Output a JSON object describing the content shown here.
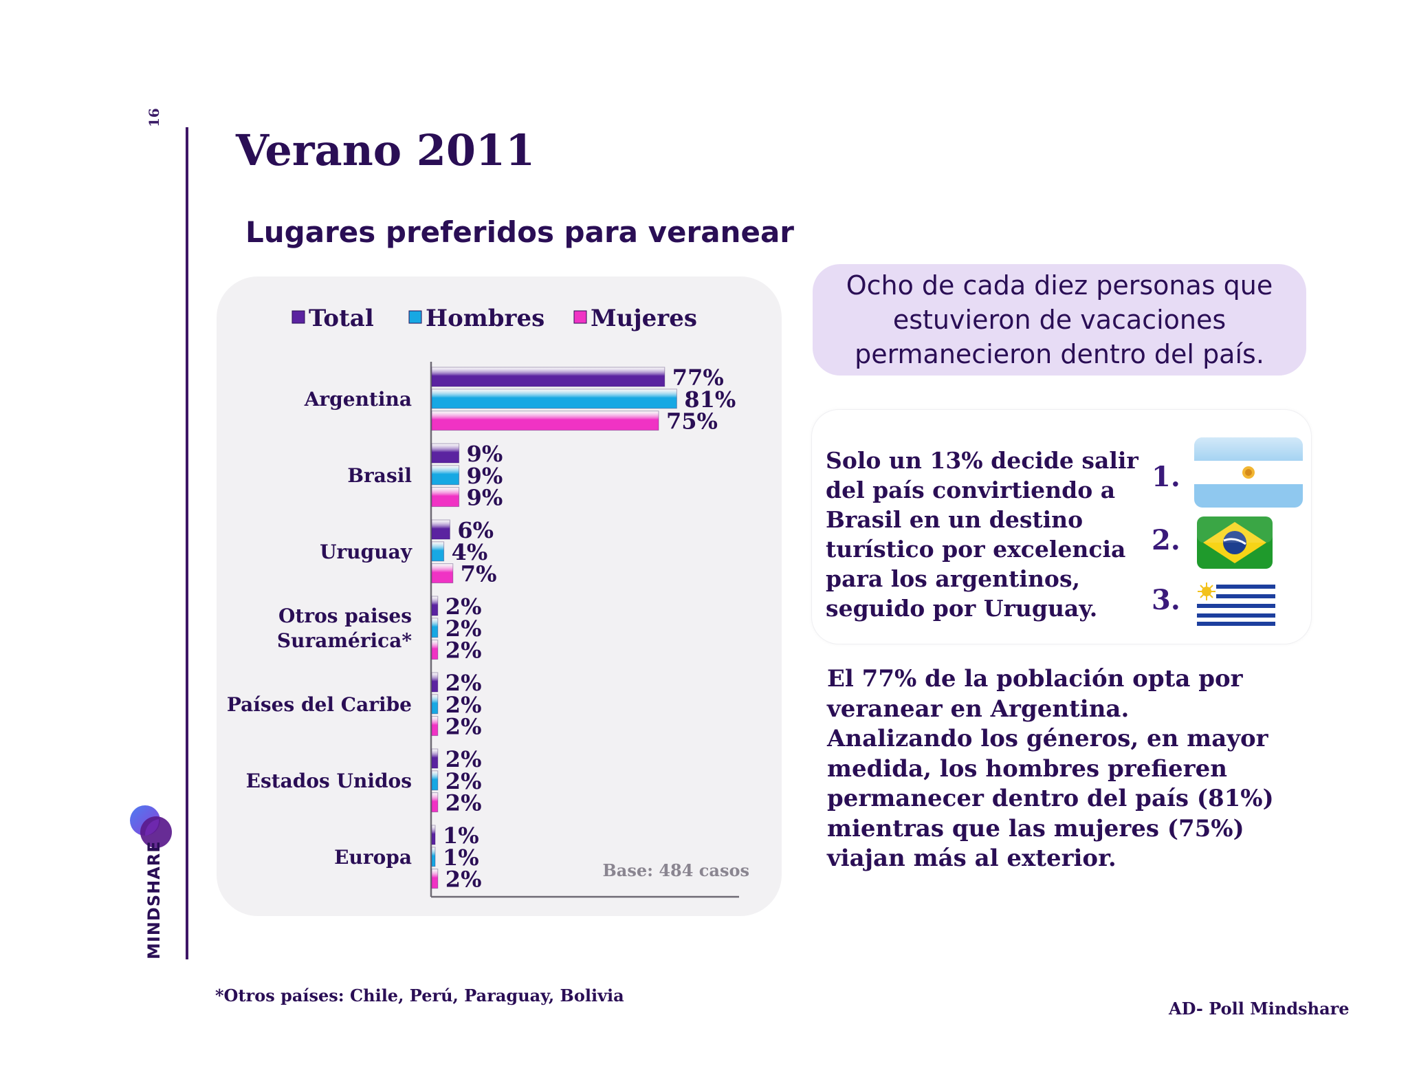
{
  "page": {
    "number": "16",
    "brand": "MINDSHARE"
  },
  "title": "Verano 2011",
  "subtitle": "Lugares preferidos para veranear",
  "callout": "Ocho de cada diez personas que estuvieron de vacaciones permanecieron dentro del país.",
  "info": {
    "text": "Solo un 13% decide salir del país convirtiendo a Brasil en un destino turístico por excelencia para los argentinos, seguido por Uruguay.",
    "ranking": [
      {
        "rank": "1.",
        "flag": "argentina-flag"
      },
      {
        "rank": "2.",
        "flag": "brazil-flag"
      },
      {
        "rank": "3.",
        "flag": "uruguay-flag"
      }
    ]
  },
  "summary": {
    "line1": "El 77% de la población opta por veranear en Argentina.",
    "line2": "Analizando los géneros, en mayor medida, los hombres prefieren permanecer dentro del país (81%) mientras que las mujeres (75%) viajan más al exterior."
  },
  "footnote": "*Otros países: Chile, Perú, Paraguay, Bolivia",
  "source": "AD- Poll Mindshare",
  "colors": {
    "total": "#5b23a0",
    "hombres": "#17a8e3",
    "mujeres": "#f033c4",
    "text": "#2a0e55"
  },
  "chart_data": {
    "type": "bar",
    "orientation": "horizontal",
    "categories": [
      "Argentina",
      "Brasil",
      "Uruguay",
      "Otros paises Suramérica*",
      "Países del Caribe",
      "Estados Unidos",
      "Europa"
    ],
    "category_lines": [
      [
        "Argentina"
      ],
      [
        "Brasil"
      ],
      [
        "Uruguay"
      ],
      [
        "Otros paises",
        "Suramérica*"
      ],
      [
        "Países del Caribe"
      ],
      [
        "Estados Unidos"
      ],
      [
        "Europa"
      ]
    ],
    "series": [
      {
        "name": "Total",
        "values": [
          77,
          9,
          6,
          2,
          2,
          2,
          1
        ]
      },
      {
        "name": "Hombres",
        "values": [
          81,
          9,
          4,
          2,
          2,
          2,
          1
        ]
      },
      {
        "name": "Mujeres",
        "values": [
          75,
          9,
          7,
          2,
          2,
          2,
          2
        ]
      }
    ],
    "value_suffix": "%",
    "legend_position": "top",
    "xlim": [
      0,
      100
    ],
    "grid": false,
    "note": "Base: 484 casos"
  }
}
